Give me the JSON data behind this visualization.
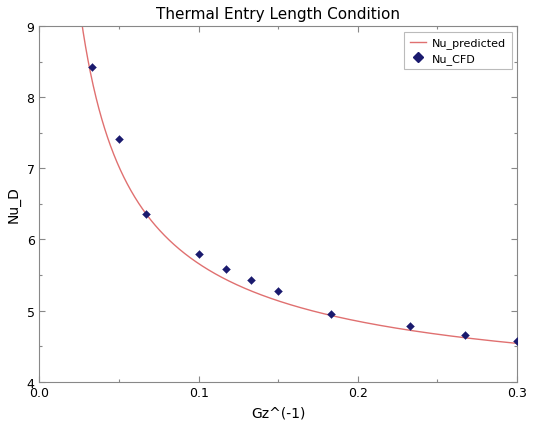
{
  "title": "Thermal Entry Length Condition",
  "xlabel": "Gz^(-1)",
  "ylabel": "Nu_D",
  "xlim": [
    0,
    0.3
  ],
  "ylim": [
    4,
    9
  ],
  "xticks": [
    0,
    0.1,
    0.2,
    0.3
  ],
  "yticks": [
    4,
    5,
    6,
    7,
    8,
    9
  ],
  "line_color": "#e07070",
  "marker_color": "#1a1a6e",
  "marker_style": "D",
  "marker_size": 4,
  "cfd_x": [
    0.033,
    0.05,
    0.067,
    0.1,
    0.117,
    0.133,
    0.15,
    0.183,
    0.233,
    0.267,
    0.3
  ],
  "cfd_y": [
    8.42,
    7.42,
    6.36,
    5.8,
    5.58,
    5.43,
    5.28,
    4.95,
    4.78,
    4.65,
    4.57
  ],
  "legend_line_label": "Nu_predicted",
  "legend_marker_label": "Nu_CFD",
  "background_color": "#ffffff",
  "title_fontsize": 11,
  "axis_fontsize": 10,
  "tick_fontsize": 9,
  "curve_x_start": 0.005,
  "curve_x_end": 0.305
}
